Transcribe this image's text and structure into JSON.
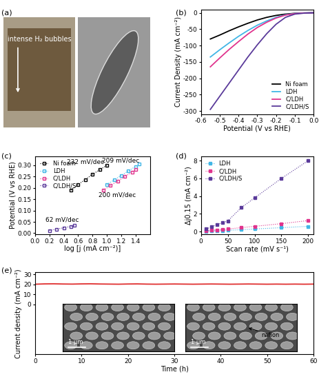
{
  "chart_data": [
    {
      "panel": "(a)",
      "type": "image",
      "annotations": [
        "intense H₂ bubbles"
      ]
    },
    {
      "panel": "(b)",
      "type": "line",
      "xlabel": "Potential (V vs RHE)",
      "ylabel": "Current Density (mA cm⁻²)",
      "xlim": [
        -0.6,
        0.0
      ],
      "xticks": [
        {
          "value": -0.6,
          "label": "-0.6"
        },
        {
          "value": -0.5,
          "label": "-0.5"
        },
        {
          "value": -0.4,
          "label": "-0.4"
        },
        {
          "value": -0.3,
          "label": "-0.3"
        },
        {
          "value": -0.2,
          "label": "-0.2"
        },
        {
          "value": -0.1,
          "label": "-0.1"
        },
        {
          "value": 0.0,
          "label": "0.0"
        }
      ],
      "ylim": [
        -310,
        10
      ],
      "yticks": [
        -300,
        -250,
        -200,
        -150,
        -100,
        -50,
        0
      ],
      "legend": "lower right",
      "series": [
        {
          "name": "Ni foam",
          "color": "#000000",
          "x": [
            -0.55,
            -0.5,
            -0.45,
            -0.4,
            -0.35,
            -0.3,
            -0.25,
            -0.2,
            -0.15,
            -0.1,
            -0.05,
            0.0
          ],
          "values": [
            -80,
            -68,
            -55,
            -43,
            -32,
            -22,
            -14,
            -8,
            -4,
            -1.5,
            -0.5,
            0
          ]
        },
        {
          "name": "LDH",
          "color": "#41b6e6",
          "x": [
            -0.55,
            -0.5,
            -0.45,
            -0.4,
            -0.35,
            -0.3,
            -0.25,
            -0.2,
            -0.15,
            -0.1,
            -0.05,
            0.0
          ],
          "values": [
            -135,
            -113,
            -92,
            -72,
            -54,
            -38,
            -25,
            -14,
            -6,
            -2,
            -0.5,
            0
          ]
        },
        {
          "name": "C/LDH",
          "color": "#e0338d",
          "x": [
            -0.55,
            -0.5,
            -0.45,
            -0.4,
            -0.35,
            -0.3,
            -0.25,
            -0.2,
            -0.15,
            -0.1,
            -0.05,
            0.0
          ],
          "values": [
            -165,
            -138,
            -112,
            -88,
            -65,
            -45,
            -29,
            -16,
            -7,
            -2.5,
            -0.5,
            0
          ]
        },
        {
          "name": "C/LDH/S",
          "color": "#5a3a9a",
          "x": [
            -0.55,
            -0.5,
            -0.45,
            -0.4,
            -0.35,
            -0.3,
            -0.25,
            -0.2,
            -0.15,
            -0.1,
            -0.05,
            0.0
          ],
          "values": [
            -295,
            -255,
            -215,
            -175,
            -135,
            -98,
            -64,
            -35,
            -14,
            -4,
            -1,
            0
          ]
        }
      ]
    },
    {
      "panel": "(c)",
      "type": "scatter",
      "xlabel": "log [j (mA cm⁻²)]",
      "ylabel": "Potential (V vs RHE)",
      "xlim": [
        0.0,
        1.6
      ],
      "xticks": [
        {
          "value": 0.0,
          "label": "0.0"
        },
        {
          "value": 0.2,
          "label": "0.2"
        },
        {
          "value": 0.4,
          "label": "0.4"
        },
        {
          "value": 0.6,
          "label": "0.6"
        },
        {
          "value": 0.8,
          "label": "0.8"
        },
        {
          "value": 1.0,
          "label": "1.0"
        },
        {
          "value": 1.2,
          "label": "1.2"
        },
        {
          "value": 1.4,
          "label": "1.4"
        }
      ],
      "ylim": [
        -0.005,
        0.34
      ],
      "yticks": [
        {
          "value": 0.0,
          "label": "0.00"
        },
        {
          "value": 0.05,
          "label": "0.05"
        },
        {
          "value": 0.1,
          "label": "0.10"
        },
        {
          "value": 0.15,
          "label": "0.15"
        },
        {
          "value": 0.2,
          "label": "0.20"
        },
        {
          "value": 0.25,
          "label": "0.25"
        },
        {
          "value": 0.3,
          "label": "0.30"
        }
      ],
      "legend": "upper left",
      "marker": "square_open",
      "line_style": "dotted",
      "series": [
        {
          "name": "Ni foam",
          "color": "#000000",
          "annotation": "232 mV/dec",
          "x": [
            0.5,
            0.6,
            0.7,
            0.8,
            0.9,
            1.0
          ],
          "values": [
            0.19,
            0.215,
            0.237,
            0.26,
            0.28,
            0.3
          ]
        },
        {
          "name": "LDH",
          "color": "#41b6e6",
          "annotation": "209 mV/dec",
          "x": [
            1.0,
            1.1,
            1.2,
            1.3,
            1.4,
            1.45
          ],
          "values": [
            0.215,
            0.235,
            0.255,
            0.275,
            0.295,
            0.305
          ]
        },
        {
          "name": "C/LDH",
          "color": "#e0338d",
          "annotation": "200 mV/dec",
          "x": [
            0.95,
            1.05,
            1.15,
            1.25,
            1.35,
            1.4
          ],
          "values": [
            0.19,
            0.21,
            0.23,
            0.25,
            0.27,
            0.28
          ]
        },
        {
          "name": "C/LDH/S",
          "color": "#5a3a9a",
          "annotation": "62 mV/dec",
          "x": [
            0.2,
            0.3,
            0.4,
            0.5,
            0.55
          ],
          "values": [
            0.012,
            0.018,
            0.024,
            0.03,
            0.034
          ]
        }
      ]
    },
    {
      "panel": "(d)",
      "type": "scatter",
      "xlabel": "Scan rate (mV s⁻¹)",
      "ylabel": "Δj0.15 (mA cm⁻²)",
      "xlim": [
        0,
        210
      ],
      "xticks": [
        0,
        50,
        100,
        150,
        200
      ],
      "ylim": [
        -0.3,
        8.5
      ],
      "yticks": [
        0,
        2,
        4,
        6,
        8
      ],
      "legend": "upper left",
      "marker": "square",
      "line_style": "dotted",
      "series": [
        {
          "name": "LDH",
          "color": "#41b6e6",
          "x": [
            10,
            20,
            30,
            40,
            50,
            75,
            100,
            150,
            200
          ],
          "values": [
            0.05,
            0.08,
            0.1,
            0.13,
            0.15,
            0.22,
            0.3,
            0.45,
            0.6
          ]
        },
        {
          "name": "C/LDH",
          "color": "#e0338d",
          "x": [
            10,
            20,
            30,
            40,
            50,
            75,
            100,
            150,
            200
          ],
          "values": [
            0.1,
            0.15,
            0.2,
            0.25,
            0.3,
            0.45,
            0.6,
            0.9,
            1.25
          ]
        },
        {
          "name": "C/LDH/S",
          "color": "#5a3a9a",
          "x": [
            10,
            20,
            30,
            40,
            50,
            75,
            100,
            150,
            200
          ],
          "values": [
            0.3,
            0.55,
            0.8,
            1.0,
            1.2,
            2.7,
            3.8,
            6.0,
            8.0
          ]
        }
      ]
    },
    {
      "panel": "(e)",
      "type": "line",
      "xlabel": "Time (h)",
      "ylabel": "Current density (mA cm⁻²)",
      "xlim": [
        0,
        60
      ],
      "xticks": [
        0,
        10,
        20,
        30,
        40,
        50,
        60
      ],
      "ylim": [
        -50,
        32
      ],
      "yticks": [
        0,
        10,
        20,
        30
      ],
      "annotations": [
        "1 μm",
        "nafion",
        "1 μm"
      ],
      "series": [
        {
          "color": "#e03030",
          "x": [
            0,
            2,
            4,
            6,
            8,
            10,
            12,
            14,
            16,
            18,
            20,
            22,
            24,
            26,
            28,
            30,
            32,
            34,
            36,
            38,
            40,
            42,
            44,
            46,
            48,
            50,
            52,
            54,
            56,
            58,
            60
          ],
          "values": [
            20.2,
            20.5,
            20.6,
            20.4,
            20.3,
            20.5,
            20.6,
            20.4,
            20.3,
            20.2,
            20.4,
            20.5,
            20.3,
            20.2,
            20.3,
            20.4,
            20.3,
            20.2,
            20.3,
            20.4,
            20.3,
            20.2,
            20.3,
            20.4,
            20.3,
            20.2,
            20.3,
            20.2,
            20.3,
            20.2,
            20.3
          ]
        }
      ]
    }
  ]
}
